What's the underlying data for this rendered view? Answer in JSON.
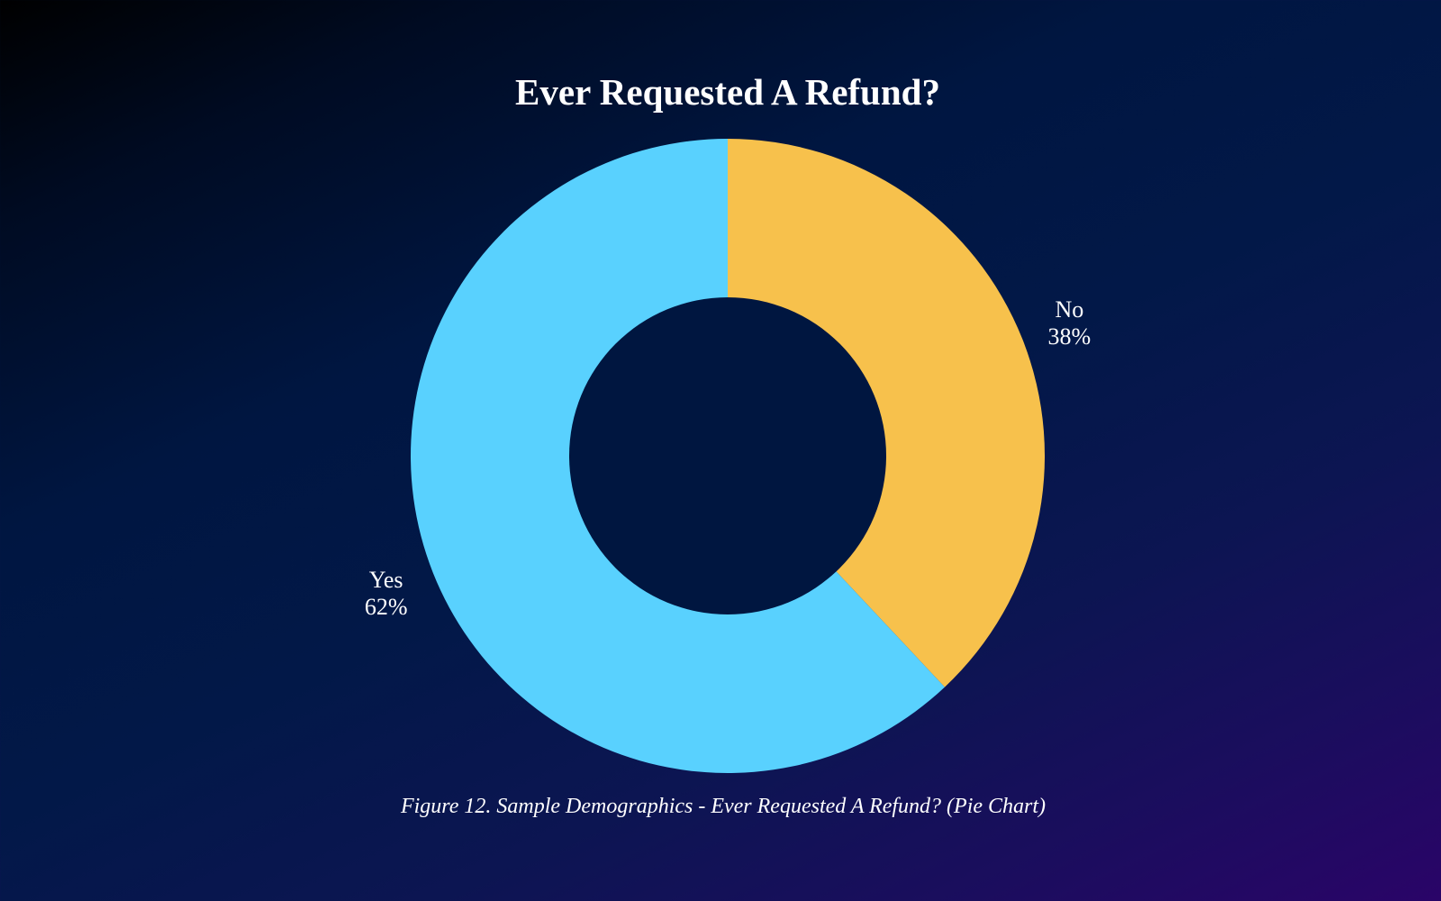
{
  "chart_data": {
    "type": "pie",
    "title": "Ever Requested A Refund?",
    "donut": true,
    "slices": [
      {
        "label": "No",
        "value": 38,
        "display": "38%",
        "color": "#f7c14c"
      },
      {
        "label": "Yes",
        "value": 62,
        "display": "62%",
        "color": "#59d1fe"
      }
    ],
    "legend": "none"
  },
  "caption": "Figure 12. Sample Demographics - Ever Requested A Refund? (Pie Chart)",
  "colors": {
    "hole": "#001640",
    "text": "#ffffff"
  }
}
